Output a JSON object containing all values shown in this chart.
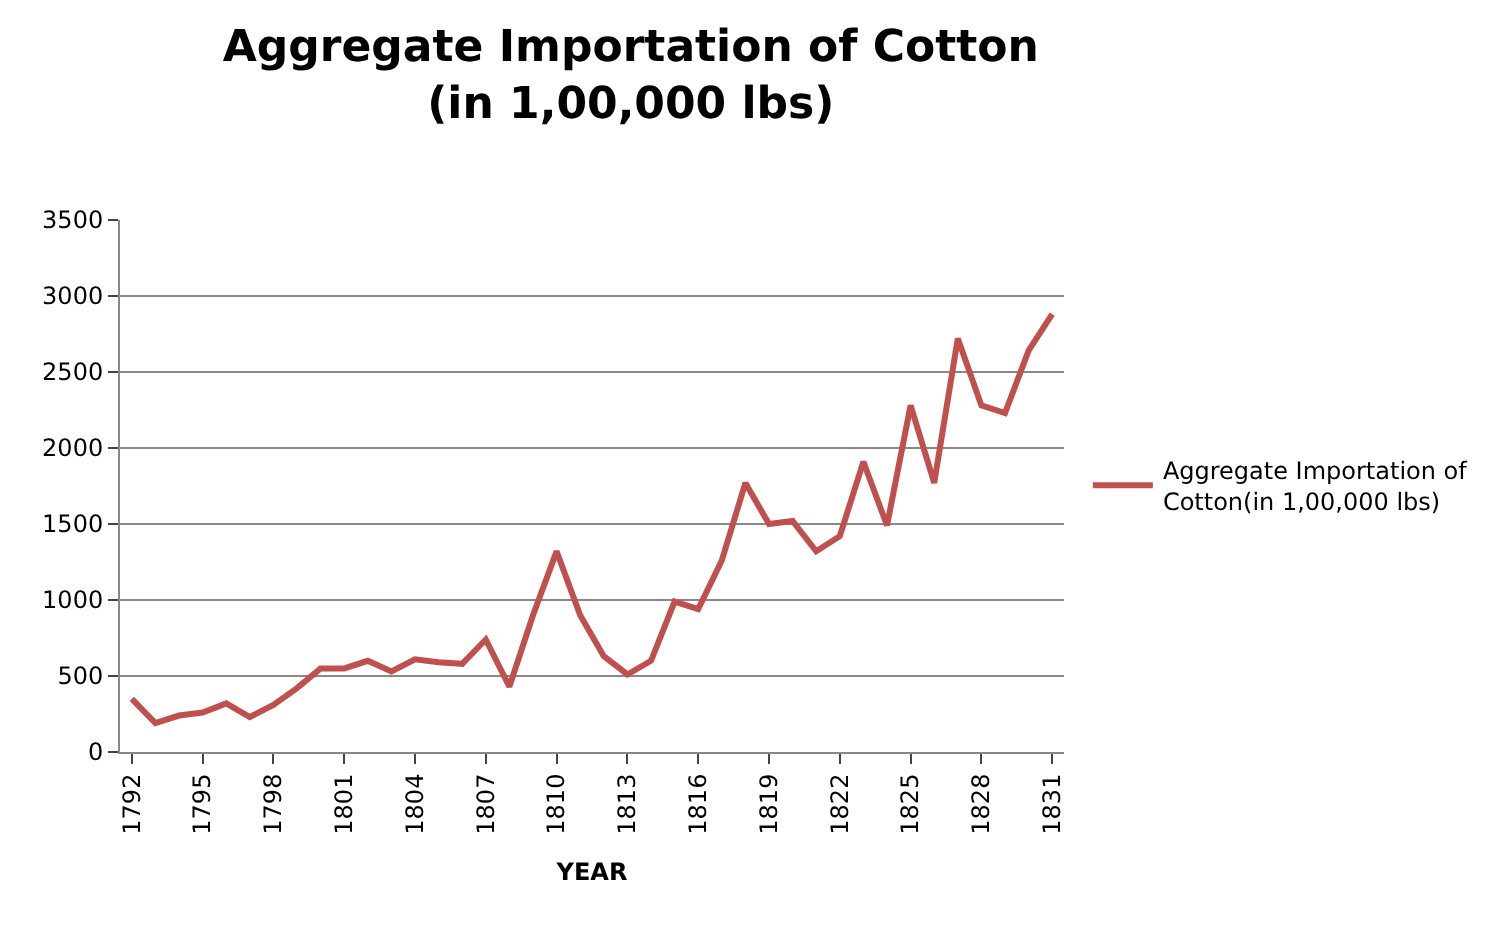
{
  "chart_data": {
    "type": "line",
    "title": "Aggregate Importation of Cotton\n(in 1,00,000 lbs)",
    "xlabel": "YEAR",
    "categories": [
      "1792",
      null,
      null,
      "1795",
      null,
      null,
      "1798",
      null,
      null,
      "1801",
      null,
      null,
      "1804",
      null,
      null,
      "1807",
      null,
      null,
      "1810",
      null,
      null,
      "1813",
      null,
      null,
      "1816",
      null,
      null,
      "1819",
      null,
      null,
      "1822",
      null,
      null,
      "1825",
      null,
      null,
      "1828",
      null,
      null,
      "1831"
    ],
    "series": [
      {
        "name": "Aggregate Importation of Cotton(in 1,00,000 lbs)",
        "color": "#c0504d",
        "values": [
          350,
          190,
          240,
          260,
          320,
          230,
          310,
          420,
          550,
          550,
          600,
          530,
          610,
          590,
          580,
          740,
          430,
          900,
          1320,
          900,
          630,
          510,
          600,
          990,
          940,
          1260,
          1770,
          1500,
          1520,
          1320,
          1420,
          1910,
          1490,
          2280,
          1770,
          2720,
          2280,
          2230,
          2640,
          2880
        ]
      }
    ],
    "ylim": [
      0,
      3500
    ],
    "yticks": [
      0,
      500,
      1000,
      1500,
      2000,
      2500,
      3000,
      3500
    ],
    "grid": "y",
    "legend": "right",
    "marker": "none",
    "line_style": "solid"
  }
}
